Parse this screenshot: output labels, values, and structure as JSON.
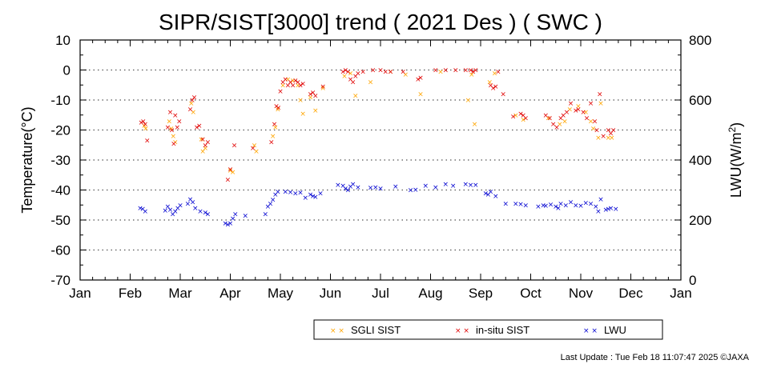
{
  "chart_data": {
    "type": "scatter",
    "title": "SIPR/SIST[3000] trend ( 2021 Des ) ( SWC )",
    "ylabel": "Temperature(°C)",
    "y2label_base": "LWU(W/m",
    "y2label_sup": "2",
    "y2label_end": ")",
    "x_tick_labels": [
      "Jan",
      "Feb",
      "Mar",
      "Apr",
      "May",
      "Jun",
      "Jul",
      "Aug",
      "Sep",
      "Oct",
      "Nov",
      "Dec",
      "Jan"
    ],
    "x_range_months": [
      0,
      12
    ],
    "ylim": [
      -70,
      10
    ],
    "y_ticks": [
      10,
      0,
      -10,
      -20,
      -30,
      -40,
      -50,
      -60,
      -70
    ],
    "y2lim": [
      0,
      800
    ],
    "y2_ticks": [
      800,
      600,
      400,
      200,
      0
    ],
    "gridlines": "horizontal dotted",
    "legend_position": "bottom-right",
    "marker": "×",
    "series": [
      {
        "name": "SGLI SIST",
        "axis": "left",
        "color": "#ffa500",
        "points": [
          [
            1.28,
            -18.5
          ],
          [
            1.31,
            -19.5
          ],
          [
            1.78,
            -17
          ],
          [
            1.82,
            -19.5
          ],
          [
            1.86,
            -22
          ],
          [
            1.9,
            -24
          ],
          [
            2.22,
            -11
          ],
          [
            2.26,
            -14
          ],
          [
            2.42,
            -23
          ],
          [
            2.45,
            -27
          ],
          [
            2.5,
            -26
          ],
          [
            3.0,
            -33.5
          ],
          [
            3.05,
            -34
          ],
          [
            3.48,
            -25
          ],
          [
            3.52,
            -27
          ],
          [
            3.85,
            -22
          ],
          [
            3.9,
            -19
          ],
          [
            3.95,
            -13
          ],
          [
            4.05,
            -5
          ],
          [
            4.15,
            -3
          ],
          [
            4.25,
            -3.5
          ],
          [
            4.35,
            -5
          ],
          [
            4.4,
            -10
          ],
          [
            4.45,
            -14.5
          ],
          [
            4.6,
            -9
          ],
          [
            4.7,
            -13.5
          ],
          [
            4.85,
            -6
          ],
          [
            5.28,
            -2
          ],
          [
            5.4,
            -1
          ],
          [
            5.5,
            -8.5
          ],
          [
            5.8,
            -4
          ],
          [
            6.2,
            -0.5
          ],
          [
            6.5,
            -1.5
          ],
          [
            6.8,
            -8
          ],
          [
            7.2,
            -0.5
          ],
          [
            7.75,
            -10
          ],
          [
            7.82,
            -1.5
          ],
          [
            7.88,
            -18
          ],
          [
            8.18,
            -4
          ],
          [
            8.28,
            -1
          ],
          [
            8.7,
            -15
          ],
          [
            8.85,
            -16.5
          ],
          [
            9.35,
            -16
          ],
          [
            9.58,
            -18
          ],
          [
            9.68,
            -17
          ],
          [
            9.78,
            -13
          ],
          [
            9.95,
            -12
          ],
          [
            10.1,
            -14
          ],
          [
            10.2,
            -17
          ],
          [
            10.25,
            -19.5
          ],
          [
            10.35,
            -22.5
          ],
          [
            10.4,
            -11
          ],
          [
            10.55,
            -22.5
          ],
          [
            10.62,
            -22.5
          ]
        ]
      },
      {
        "name": "in-situ SIST",
        "axis": "left",
        "color": "#e00000",
        "points": [
          [
            1.22,
            -17.5
          ],
          [
            1.26,
            -17
          ],
          [
            1.3,
            -18
          ],
          [
            1.34,
            -23.5
          ],
          [
            1.75,
            -19
          ],
          [
            1.8,
            -14
          ],
          [
            1.83,
            -20
          ],
          [
            1.87,
            -24.5
          ],
          [
            1.9,
            -15
          ],
          [
            1.94,
            -19
          ],
          [
            1.98,
            -17
          ],
          [
            2.2,
            -13
          ],
          [
            2.24,
            -10
          ],
          [
            2.28,
            -9
          ],
          [
            2.33,
            -19
          ],
          [
            2.38,
            -18.5
          ],
          [
            2.45,
            -23
          ],
          [
            2.5,
            -25
          ],
          [
            2.55,
            -24
          ],
          [
            2.95,
            -36.5
          ],
          [
            3.0,
            -33
          ],
          [
            3.08,
            -25
          ],
          [
            3.45,
            -26
          ],
          [
            3.82,
            -24
          ],
          [
            3.88,
            -18
          ],
          [
            3.92,
            -12
          ],
          [
            3.96,
            -12.5
          ],
          [
            4.0,
            -7
          ],
          [
            4.05,
            -4
          ],
          [
            4.1,
            -3
          ],
          [
            4.15,
            -5
          ],
          [
            4.2,
            -4
          ],
          [
            4.25,
            -5
          ],
          [
            4.3,
            -3.5
          ],
          [
            4.35,
            -4
          ],
          [
            4.4,
            -5
          ],
          [
            4.45,
            -4.5
          ],
          [
            4.6,
            -8
          ],
          [
            4.65,
            -7.5
          ],
          [
            4.7,
            -8.5
          ],
          [
            4.85,
            -5.5
          ],
          [
            5.25,
            -0.5
          ],
          [
            5.3,
            0
          ],
          [
            5.35,
            -0.5
          ],
          [
            5.4,
            -3
          ],
          [
            5.45,
            -4
          ],
          [
            5.5,
            -2
          ],
          [
            5.55,
            -1
          ],
          [
            5.65,
            -0.5
          ],
          [
            5.85,
            0
          ],
          [
            6.0,
            0
          ],
          [
            6.1,
            -0.5
          ],
          [
            6.2,
            -0.5
          ],
          [
            6.45,
            -0.5
          ],
          [
            6.75,
            -3
          ],
          [
            6.8,
            -2.5
          ],
          [
            7.1,
            0
          ],
          [
            7.3,
            0
          ],
          [
            7.5,
            0
          ],
          [
            7.7,
            0
          ],
          [
            7.8,
            0
          ],
          [
            7.85,
            -0.5
          ],
          [
            7.9,
            0
          ],
          [
            8.2,
            -5
          ],
          [
            8.25,
            -6
          ],
          [
            8.3,
            -5.5
          ],
          [
            8.35,
            -0.5
          ],
          [
            8.45,
            -8
          ],
          [
            8.65,
            -15.5
          ],
          [
            8.8,
            -14.5
          ],
          [
            8.85,
            -15
          ],
          [
            8.9,
            -16
          ],
          [
            9.3,
            -15
          ],
          [
            9.38,
            -16
          ],
          [
            9.45,
            -18
          ],
          [
            9.52,
            -19
          ],
          [
            9.6,
            -16
          ],
          [
            9.65,
            -15
          ],
          [
            9.72,
            -14
          ],
          [
            9.8,
            -11
          ],
          [
            9.9,
            -13.5
          ],
          [
            9.95,
            -13
          ],
          [
            10.05,
            -14
          ],
          [
            10.12,
            -16
          ],
          [
            10.2,
            -11
          ],
          [
            10.28,
            -17
          ],
          [
            10.32,
            -20
          ],
          [
            10.38,
            -8
          ],
          [
            10.45,
            -22
          ],
          [
            10.55,
            -20
          ],
          [
            10.6,
            -21
          ],
          [
            10.65,
            -20
          ]
        ]
      },
      {
        "name": "LWU",
        "axis": "right",
        "color": "#0000d0",
        "points": [
          [
            1.2,
            240
          ],
          [
            1.25,
            238
          ],
          [
            1.3,
            230
          ],
          [
            1.7,
            232
          ],
          [
            1.75,
            245
          ],
          [
            1.8,
            235
          ],
          [
            1.85,
            220
          ],
          [
            1.9,
            230
          ],
          [
            1.95,
            240
          ],
          [
            2.0,
            250
          ],
          [
            2.15,
            255
          ],
          [
            2.2,
            270
          ],
          [
            2.25,
            260
          ],
          [
            2.3,
            240
          ],
          [
            2.4,
            230
          ],
          [
            2.5,
            225
          ],
          [
            2.55,
            220
          ],
          [
            2.9,
            190
          ],
          [
            2.95,
            185
          ],
          [
            3.0,
            190
          ],
          [
            3.05,
            205
          ],
          [
            3.1,
            220
          ],
          [
            3.3,
            215
          ],
          [
            3.7,
            220
          ],
          [
            3.75,
            245
          ],
          [
            3.8,
            255
          ],
          [
            3.85,
            268
          ],
          [
            3.9,
            285
          ],
          [
            3.95,
            295
          ],
          [
            4.1,
            295
          ],
          [
            4.2,
            293
          ],
          [
            4.3,
            290
          ],
          [
            4.4,
            292
          ],
          [
            4.5,
            275
          ],
          [
            4.6,
            285
          ],
          [
            4.65,
            280
          ],
          [
            4.7,
            278
          ],
          [
            4.8,
            290
          ],
          [
            5.15,
            318
          ],
          [
            5.25,
            315
          ],
          [
            5.3,
            305
          ],
          [
            5.35,
            300
          ],
          [
            5.4,
            312
          ],
          [
            5.45,
            320
          ],
          [
            5.55,
            310
          ],
          [
            5.8,
            308
          ],
          [
            5.9,
            310
          ],
          [
            6.0,
            305
          ],
          [
            6.3,
            312
          ],
          [
            6.6,
            300
          ],
          [
            6.7,
            302
          ],
          [
            6.9,
            315
          ],
          [
            7.1,
            310
          ],
          [
            7.3,
            320
          ],
          [
            7.45,
            315
          ],
          [
            7.7,
            320
          ],
          [
            7.8,
            318
          ],
          [
            7.9,
            318
          ],
          [
            8.1,
            290
          ],
          [
            8.15,
            285
          ],
          [
            8.2,
            295
          ],
          [
            8.3,
            280
          ],
          [
            8.5,
            255
          ],
          [
            8.7,
            255
          ],
          [
            8.8,
            253
          ],
          [
            8.9,
            250
          ],
          [
            9.15,
            245
          ],
          [
            9.25,
            250
          ],
          [
            9.3,
            248
          ],
          [
            9.4,
            252
          ],
          [
            9.5,
            245
          ],
          [
            9.55,
            240
          ],
          [
            9.6,
            255
          ],
          [
            9.7,
            250
          ],
          [
            9.8,
            260
          ],
          [
            9.9,
            250
          ],
          [
            10.0,
            248
          ],
          [
            10.1,
            258
          ],
          [
            10.2,
            255
          ],
          [
            10.3,
            245
          ],
          [
            10.35,
            230
          ],
          [
            10.4,
            270
          ],
          [
            10.5,
            235
          ],
          [
            10.55,
            238
          ],
          [
            10.6,
            240
          ],
          [
            10.7,
            238
          ]
        ]
      }
    ]
  },
  "footer": {
    "last_update": "Last Update : Tue Feb 18 11:07:47 2025  ©JAXA"
  }
}
